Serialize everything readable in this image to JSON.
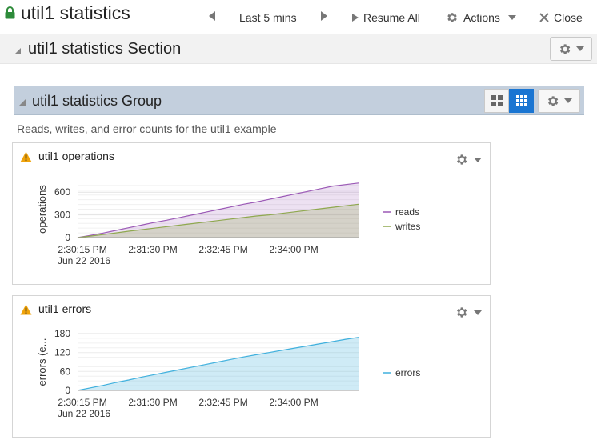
{
  "header": {
    "title": "util1 statistics",
    "time_range": "Last 5 mins",
    "resume_label": "Resume All",
    "actions_label": "Actions",
    "close_label": "Close"
  },
  "section": {
    "title": "util1 statistics Section"
  },
  "group": {
    "title": "util1 statistics Group",
    "description": "Reads, writes, and error counts for the util1 example"
  },
  "colors": {
    "reads": "#9b59b6",
    "writes": "#8fa84f",
    "errors": "#3fb0dd",
    "accent": "#1a75d2",
    "warning": "#f0a30a"
  },
  "panels": [
    {
      "title": "util1 operations",
      "chart_data": {
        "type": "area",
        "ylabel": "operations",
        "y_ticks": [
          "600",
          "300",
          "0"
        ],
        "ylim": [
          0,
          750
        ],
        "x_ticks": [
          "2:30:15 PM",
          "2:31:30 PM",
          "2:32:45 PM",
          "2:34:00 PM"
        ],
        "x_sub": "Jun 22 2016",
        "series": [
          {
            "name": "reads",
            "values": [
              0,
              30,
              60,
              95,
              130,
              165,
              200,
              230,
              265,
              300,
              335,
              370,
              405,
              440,
              470,
              505,
              540,
              575,
              610,
              645,
              680,
              700,
              720
            ]
          },
          {
            "name": "writes",
            "values": [
              0,
              20,
              40,
              62,
              85,
              105,
              125,
              145,
              165,
              185,
              205,
              225,
              245,
              265,
              285,
              300,
              320,
              340,
              360,
              380,
              400,
              420,
              440
            ]
          }
        ]
      }
    },
    {
      "title": "util1 errors",
      "chart_data": {
        "type": "area",
        "ylabel": "errors (e...",
        "y_ticks": [
          "180",
          "120",
          "60",
          "0"
        ],
        "ylim": [
          0,
          180
        ],
        "x_ticks": [
          "2:30:15 PM",
          "2:31:30 PM",
          "2:32:45 PM",
          "2:34:00 PM"
        ],
        "x_sub": "Jun 22 2016",
        "series": [
          {
            "name": "errors",
            "values": [
              0,
              8,
              16,
              25,
              33,
              42,
              50,
              58,
              66,
              74,
              82,
              90,
              98,
              106,
              113,
              120,
              127,
              134,
              141,
              148,
              155,
              162,
              168
            ]
          }
        ]
      }
    }
  ]
}
